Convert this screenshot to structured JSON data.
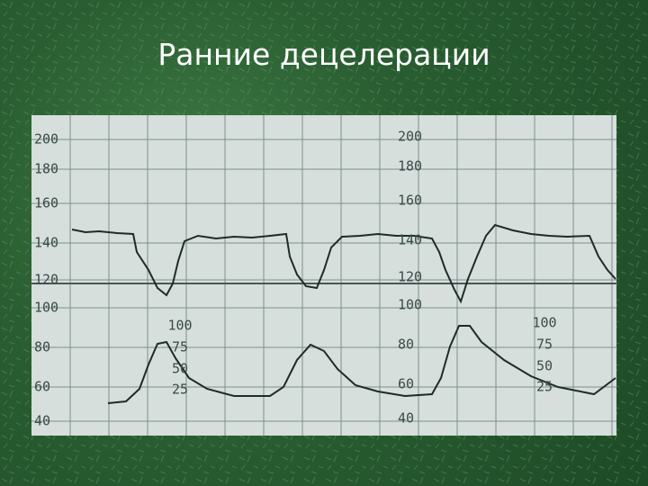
{
  "title": "Ранние децелерации",
  "strip": {
    "left_scale": [
      "200",
      "180",
      "160",
      "140",
      "120",
      "100",
      "80",
      "60",
      "40"
    ],
    "middle_scale": [
      "200",
      "180",
      "160",
      "140",
      "120",
      "100",
      "80",
      "60",
      "40"
    ],
    "contraction_scale_left": [
      "100",
      "75",
      "50",
      "25"
    ],
    "contraction_scale_right": [
      "100",
      "75",
      "50",
      "25"
    ]
  }
}
